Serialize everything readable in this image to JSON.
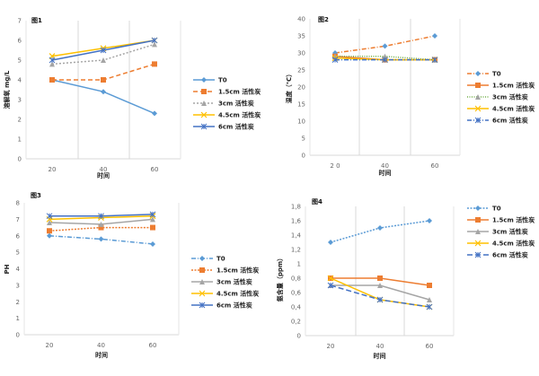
{
  "chart_data": [
    {
      "type": "line",
      "title": "图1",
      "xlabel": "时间",
      "ylabel": "溶解氧 mg/L",
      "categories": [
        "20",
        "40",
        "60"
      ],
      "ylim": [
        0,
        7
      ],
      "yticks": [
        "0",
        "1",
        "2",
        "3",
        "4",
        "5",
        "6",
        "7"
      ],
      "grid": "vertical",
      "legend": "right",
      "series": [
        {
          "name": "T0",
          "values": [
            4,
            3.4,
            2.3
          ],
          "color": "#5B9BD5",
          "marker": "diamond"
        },
        {
          "name": "1.5cm 活性炭",
          "values": [
            4,
            4,
            4.8
          ],
          "color": "#ED7D31",
          "marker": "square"
        },
        {
          "name": "3cm 活性炭",
          "values": [
            4.8,
            5,
            5.8
          ],
          "color": "#A5A5A5",
          "marker": "triangle"
        },
        {
          "name": "4.5cm 活性炭",
          "values": [
            5.2,
            5.6,
            6
          ],
          "color": "#FFC000",
          "marker": "x"
        },
        {
          "name": "6cm 活性炭",
          "values": [
            5,
            5.5,
            6
          ],
          "color": "#4472C4",
          "marker": "star"
        }
      ]
    },
    {
      "type": "line",
      "title": "图2",
      "xlabel": "时间",
      "ylabel": "温度（℃）",
      "categories": [
        "2 0",
        "40",
        "60"
      ],
      "ylim": [
        0,
        40
      ],
      "yticks": [
        "0",
        "5",
        "10",
        "15",
        "20",
        "25",
        "30",
        "35",
        "40"
      ],
      "grid": "vertical",
      "legend": "right",
      "series": [
        {
          "name": "T0",
          "values": [
            30,
            32,
            35
          ],
          "color": "#ED7D31",
          "marker_color": "#5B9BD5",
          "marker": "diamond"
        },
        {
          "name": "1.5cm 活性炭",
          "values": [
            29,
            28,
            28
          ],
          "color": "#ED7D31",
          "marker": "square"
        },
        {
          "name": "3cm 活性炭",
          "values": [
            29,
            29,
            28
          ],
          "color": "#70AD47",
          "marker_color": "#A5A5A5",
          "marker": "triangle"
        },
        {
          "name": "4.5cm 活性炭",
          "values": [
            28.5,
            28,
            28
          ],
          "color": "#FFC000",
          "marker": "x"
        },
        {
          "name": "6cm 活性炭",
          "values": [
            28,
            28,
            28
          ],
          "color": "#4472C4",
          "marker": "star"
        }
      ]
    },
    {
      "type": "line",
      "title": "图3",
      "xlabel": "时间",
      "ylabel": "PH",
      "categories": [
        "20",
        "40",
        "60"
      ],
      "ylim": [
        0,
        8
      ],
      "yticks": [
        "0",
        "1",
        "2",
        "3",
        "4",
        "5",
        "6",
        "7",
        "8"
      ],
      "grid": "none",
      "legend": "right",
      "series": [
        {
          "name": "T0",
          "values": [
            6,
            5.8,
            5.5
          ],
          "color": "#5B9BD5",
          "marker": "diamond"
        },
        {
          "name": "1.5cm 活性炭",
          "values": [
            6.3,
            6.5,
            6.5
          ],
          "color": "#ED7D31",
          "marker": "square"
        },
        {
          "name": "3cm 活性炭",
          "values": [
            6.8,
            6.7,
            7
          ],
          "color": "#A5A5A5",
          "marker": "triangle"
        },
        {
          "name": "4.5cm 活性炭",
          "values": [
            7,
            7.1,
            7.2
          ],
          "color": "#FFC000",
          "marker": "x"
        },
        {
          "name": "6cm 活性炭",
          "values": [
            7.2,
            7.2,
            7.3
          ],
          "color": "#4472C4",
          "marker": "star"
        }
      ]
    },
    {
      "type": "line",
      "title": "图4",
      "xlabel": "时间",
      "ylabel": "氨含量（ppm）",
      "categories": [
        "20",
        "40",
        "60"
      ],
      "ylim": [
        0,
        1.8
      ],
      "yticks": [
        "0",
        "0,2",
        "0,4",
        "0,6",
        "0,8",
        "1",
        "1,2",
        "1,4",
        "1,6",
        "1,8"
      ],
      "grid": "vertical",
      "legend": "right",
      "series": [
        {
          "name": "T0",
          "values": [
            1.3,
            1.5,
            1.6
          ],
          "color": "#5B9BD5",
          "marker": "diamond"
        },
        {
          "name": "1.5cm 活性炭",
          "values": [
            0.8,
            0.8,
            0.7
          ],
          "color": "#ED7D31",
          "marker": "square"
        },
        {
          "name": "3cm 活性炭",
          "values": [
            0.7,
            0.7,
            0.5
          ],
          "color": "#A5A5A5",
          "marker": "triangle"
        },
        {
          "name": "4.5cm 活性炭",
          "values": [
            0.8,
            0.5,
            0.4
          ],
          "color": "#FFC000",
          "marker": "x"
        },
        {
          "name": "6cm 活性炭",
          "values": [
            0.7,
            0.5,
            0.4
          ],
          "color": "#4472C4",
          "marker": "star"
        }
      ]
    }
  ]
}
